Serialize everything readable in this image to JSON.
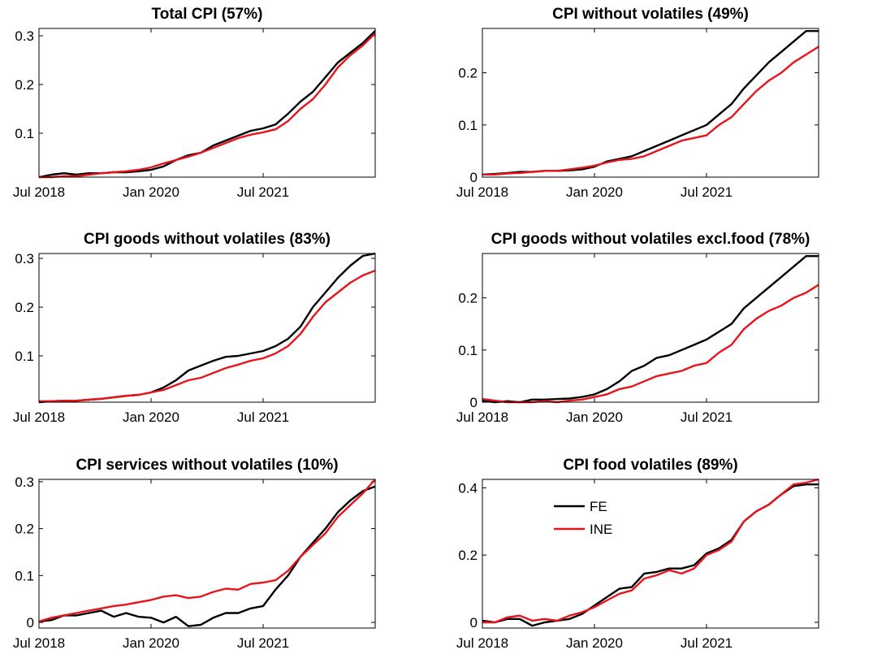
{
  "chart_data": [
    {
      "type": "line",
      "title": "Total CPI (57%)",
      "x": [
        "Jul 2018",
        "Sep 2018",
        "Nov 2018",
        "Jan 2019",
        "Mar 2019",
        "May 2019",
        "Jul 2019",
        "Sep 2019",
        "Nov 2019",
        "Jan 2020",
        "Mar 2020",
        "May 2020",
        "Jul 2020",
        "Sep 2020",
        "Nov 2020",
        "Jan 2021",
        "Mar 2021",
        "May 2021",
        "Jul 2021",
        "Sep 2021",
        "Nov 2021",
        "Jan 2022",
        "Mar 2022",
        "May 2022",
        "Jul 2022",
        "Sep 2022",
        "Nov 2022",
        "Jan 2023"
      ],
      "xticks": [
        "Jul 2018",
        "Jan 2020",
        "Jul 2021"
      ],
      "ylim": [
        0.01,
        0.315
      ],
      "yticks": [
        0.1,
        0.2,
        0.3
      ],
      "series": [
        {
          "color": "#000000",
          "values": [
            0.01,
            0.015,
            0.018,
            0.015,
            0.018,
            0.018,
            0.02,
            0.02,
            0.022,
            0.025,
            0.032,
            0.045,
            0.055,
            0.06,
            0.075,
            0.085,
            0.095,
            0.105,
            0.11,
            0.118,
            0.14,
            0.165,
            0.185,
            0.215,
            0.245,
            0.265,
            0.285,
            0.31
          ]
        },
        {
          "color": "#e8141c",
          "values": [
            0.01,
            0.01,
            0.012,
            0.012,
            0.015,
            0.018,
            0.02,
            0.022,
            0.025,
            0.03,
            0.038,
            0.045,
            0.052,
            0.06,
            0.07,
            0.08,
            0.09,
            0.097,
            0.102,
            0.108,
            0.125,
            0.15,
            0.17,
            0.2,
            0.235,
            0.26,
            0.28,
            0.305
          ]
        }
      ]
    },
    {
      "type": "line",
      "title": "CPI without volatiles (49%)",
      "x": [
        "Jul 2018",
        "Sep 2018",
        "Nov 2018",
        "Jan 2019",
        "Mar 2019",
        "May 2019",
        "Jul 2019",
        "Sep 2019",
        "Nov 2019",
        "Jan 2020",
        "Mar 2020",
        "May 2020",
        "Jul 2020",
        "Sep 2020",
        "Nov 2020",
        "Jan 2021",
        "Mar 2021",
        "May 2021",
        "Jul 2021",
        "Sep 2021",
        "Nov 2021",
        "Jan 2022",
        "Mar 2022",
        "May 2022",
        "Jul 2022",
        "Sep 2022",
        "Nov 2022",
        "Jan 2023"
      ],
      "xticks": [
        "Jul 2018",
        "Jan 2020",
        "Jul 2021"
      ],
      "ylim": [
        0,
        0.285
      ],
      "yticks": [
        0,
        0.1,
        0.2
      ],
      "series": [
        {
          "color": "#000000",
          "values": [
            0.005,
            0.006,
            0.008,
            0.01,
            0.01,
            0.012,
            0.012,
            0.013,
            0.015,
            0.02,
            0.03,
            0.035,
            0.04,
            0.05,
            0.06,
            0.07,
            0.08,
            0.09,
            0.1,
            0.12,
            0.14,
            0.17,
            0.195,
            0.22,
            0.24,
            0.26,
            0.28,
            0.28
          ]
        },
        {
          "color": "#e8141c",
          "values": [
            0.005,
            0.005,
            0.007,
            0.008,
            0.01,
            0.012,
            0.012,
            0.015,
            0.018,
            0.022,
            0.028,
            0.033,
            0.035,
            0.04,
            0.05,
            0.06,
            0.07,
            0.075,
            0.08,
            0.1,
            0.115,
            0.14,
            0.165,
            0.185,
            0.2,
            0.22,
            0.235,
            0.25
          ]
        }
      ]
    },
    {
      "type": "line",
      "title": "CPI goods without volatiles (83%)",
      "x": [
        "Jul 2018",
        "Sep 2018",
        "Nov 2018",
        "Jan 2019",
        "Mar 2019",
        "May 2019",
        "Jul 2019",
        "Sep 2019",
        "Nov 2019",
        "Jan 2020",
        "Mar 2020",
        "May 2020",
        "Jul 2020",
        "Sep 2020",
        "Nov 2020",
        "Jan 2021",
        "Mar 2021",
        "May 2021",
        "Jul 2021",
        "Sep 2021",
        "Nov 2021",
        "Jan 2022",
        "Mar 2022",
        "May 2022",
        "Jul 2022",
        "Sep 2022",
        "Nov 2022",
        "Jan 2023"
      ],
      "xticks": [
        "Jul 2018",
        "Jan 2020",
        "Jul 2021"
      ],
      "ylim": [
        0.005,
        0.31
      ],
      "yticks": [
        0.1,
        0.2,
        0.3
      ],
      "series": [
        {
          "color": "#000000",
          "values": [
            0.005,
            0.007,
            0.008,
            0.008,
            0.01,
            0.012,
            0.015,
            0.018,
            0.02,
            0.025,
            0.035,
            0.05,
            0.07,
            0.08,
            0.09,
            0.098,
            0.1,
            0.105,
            0.11,
            0.12,
            0.135,
            0.16,
            0.2,
            0.23,
            0.26,
            0.285,
            0.305,
            0.31
          ]
        },
        {
          "color": "#e8141c",
          "values": [
            0.007,
            0.007,
            0.008,
            0.008,
            0.01,
            0.012,
            0.015,
            0.018,
            0.02,
            0.025,
            0.03,
            0.04,
            0.05,
            0.055,
            0.065,
            0.075,
            0.082,
            0.09,
            0.095,
            0.105,
            0.12,
            0.145,
            0.18,
            0.21,
            0.23,
            0.25,
            0.265,
            0.275
          ]
        }
      ]
    },
    {
      "type": "line",
      "title": "CPI goods without volatiles excl.food (78%)",
      "x": [
        "Jul 2018",
        "Sep 2018",
        "Nov 2018",
        "Jan 2019",
        "Mar 2019",
        "May 2019",
        "Jul 2019",
        "Sep 2019",
        "Nov 2019",
        "Jan 2020",
        "Mar 2020",
        "May 2020",
        "Jul 2020",
        "Sep 2020",
        "Nov 2020",
        "Jan 2021",
        "Mar 2021",
        "May 2021",
        "Jul 2021",
        "Sep 2021",
        "Nov 2021",
        "Jan 2022",
        "Mar 2022",
        "May 2022",
        "Jul 2022",
        "Sep 2022",
        "Nov 2022",
        "Jan 2023"
      ],
      "xticks": [
        "Jul 2018",
        "Jan 2020",
        "Jul 2021"
      ],
      "ylim": [
        0,
        0.285
      ],
      "yticks": [
        0,
        0.1,
        0.2
      ],
      "series": [
        {
          "color": "#000000",
          "values": [
            0.003,
            0,
            0.002,
            0,
            0.005,
            0.005,
            0.006,
            0.007,
            0.01,
            0.015,
            0.025,
            0.04,
            0.06,
            0.07,
            0.085,
            0.09,
            0.1,
            0.11,
            0.12,
            0.135,
            0.15,
            0.18,
            0.2,
            0.22,
            0.24,
            0.26,
            0.28,
            0.28
          ]
        },
        {
          "color": "#e8141c",
          "values": [
            0.006,
            0.003,
            0,
            0,
            0,
            0.002,
            0,
            0.003,
            0.005,
            0.01,
            0.015,
            0.025,
            0.03,
            0.04,
            0.05,
            0.055,
            0.06,
            0.07,
            0.075,
            0.095,
            0.11,
            0.14,
            0.16,
            0.175,
            0.185,
            0.2,
            0.21,
            0.225
          ]
        }
      ]
    },
    {
      "type": "line",
      "title": "CPI services without volatiles (10%)",
      "x": [
        "Jul 2018",
        "Sep 2018",
        "Nov 2018",
        "Jan 2019",
        "Mar 2019",
        "May 2019",
        "Jul 2019",
        "Sep 2019",
        "Nov 2019",
        "Jan 2020",
        "Mar 2020",
        "May 2020",
        "Jul 2020",
        "Sep 2020",
        "Nov 2020",
        "Jan 2021",
        "Mar 2021",
        "May 2021",
        "Jul 2021",
        "Sep 2021",
        "Nov 2021",
        "Jan 2022",
        "Mar 2022",
        "May 2022",
        "Jul 2022",
        "Sep 2022",
        "Nov 2022",
        "Jan 2023"
      ],
      "xticks": [
        "Jul 2018",
        "Jan 2020",
        "Jul 2021"
      ],
      "ylim": [
        -0.012,
        0.305
      ],
      "yticks": [
        0,
        0.1,
        0.2,
        0.3
      ],
      "series": [
        {
          "color": "#000000",
          "values": [
            0.002,
            0.005,
            0.015,
            0.015,
            0.02,
            0.025,
            0.012,
            0.02,
            0.012,
            0.01,
            0,
            0.012,
            -0.008,
            -0.005,
            0.01,
            0.02,
            0.02,
            0.03,
            0.035,
            0.07,
            0.1,
            0.14,
            0.17,
            0.2,
            0.235,
            0.26,
            0.28,
            0.29
          ]
        },
        {
          "color": "#e8141c",
          "values": [
            0.002,
            0.01,
            0.015,
            0.02,
            0.025,
            0.03,
            0.035,
            0.038,
            0.043,
            0.048,
            0.055,
            0.058,
            0.052,
            0.055,
            0.065,
            0.072,
            0.07,
            0.082,
            0.085,
            0.09,
            0.11,
            0.14,
            0.165,
            0.19,
            0.225,
            0.25,
            0.275,
            0.305
          ]
        }
      ]
    },
    {
      "type": "line",
      "title": "CPI food volatiles (89%)",
      "x": [
        "Jul 2018",
        "Sep 2018",
        "Nov 2018",
        "Jan 2019",
        "Mar 2019",
        "May 2019",
        "Jul 2019",
        "Sep 2019",
        "Nov 2019",
        "Jan 2020",
        "Mar 2020",
        "May 2020",
        "Jul 2020",
        "Sep 2020",
        "Nov 2020",
        "Jan 2021",
        "Mar 2021",
        "May 2021",
        "Jul 2021",
        "Sep 2021",
        "Nov 2021",
        "Jan 2022",
        "Mar 2022",
        "May 2022",
        "Jul 2022",
        "Sep 2022",
        "Nov 2022",
        "Jan 2023"
      ],
      "xticks": [
        "Jul 2018",
        "Jan 2020",
        "Jul 2021"
      ],
      "ylim": [
        -0.017,
        0.425
      ],
      "yticks": [
        0,
        0.2,
        0.4
      ],
      "legend": "upper left",
      "series": [
        {
          "name": "FE",
          "color": "#000000",
          "values": [
            0.005,
            0,
            0.01,
            0.01,
            -0.01,
            0,
            0.005,
            0.01,
            0.025,
            0.05,
            0.075,
            0.1,
            0.105,
            0.145,
            0.15,
            0.16,
            0.16,
            0.17,
            0.205,
            0.22,
            0.245,
            0.3,
            0.33,
            0.35,
            0.38,
            0.405,
            0.41,
            0.41
          ]
        },
        {
          "name": "INE",
          "color": "#e8141c",
          "values": [
            0,
            0,
            0.015,
            0.02,
            0.005,
            0.01,
            0.005,
            0.02,
            0.03,
            0.045,
            0.065,
            0.085,
            0.095,
            0.13,
            0.14,
            0.155,
            0.145,
            0.16,
            0.2,
            0.215,
            0.24,
            0.3,
            0.33,
            0.35,
            0.38,
            0.41,
            0.415,
            0.425
          ]
        }
      ]
    }
  ]
}
